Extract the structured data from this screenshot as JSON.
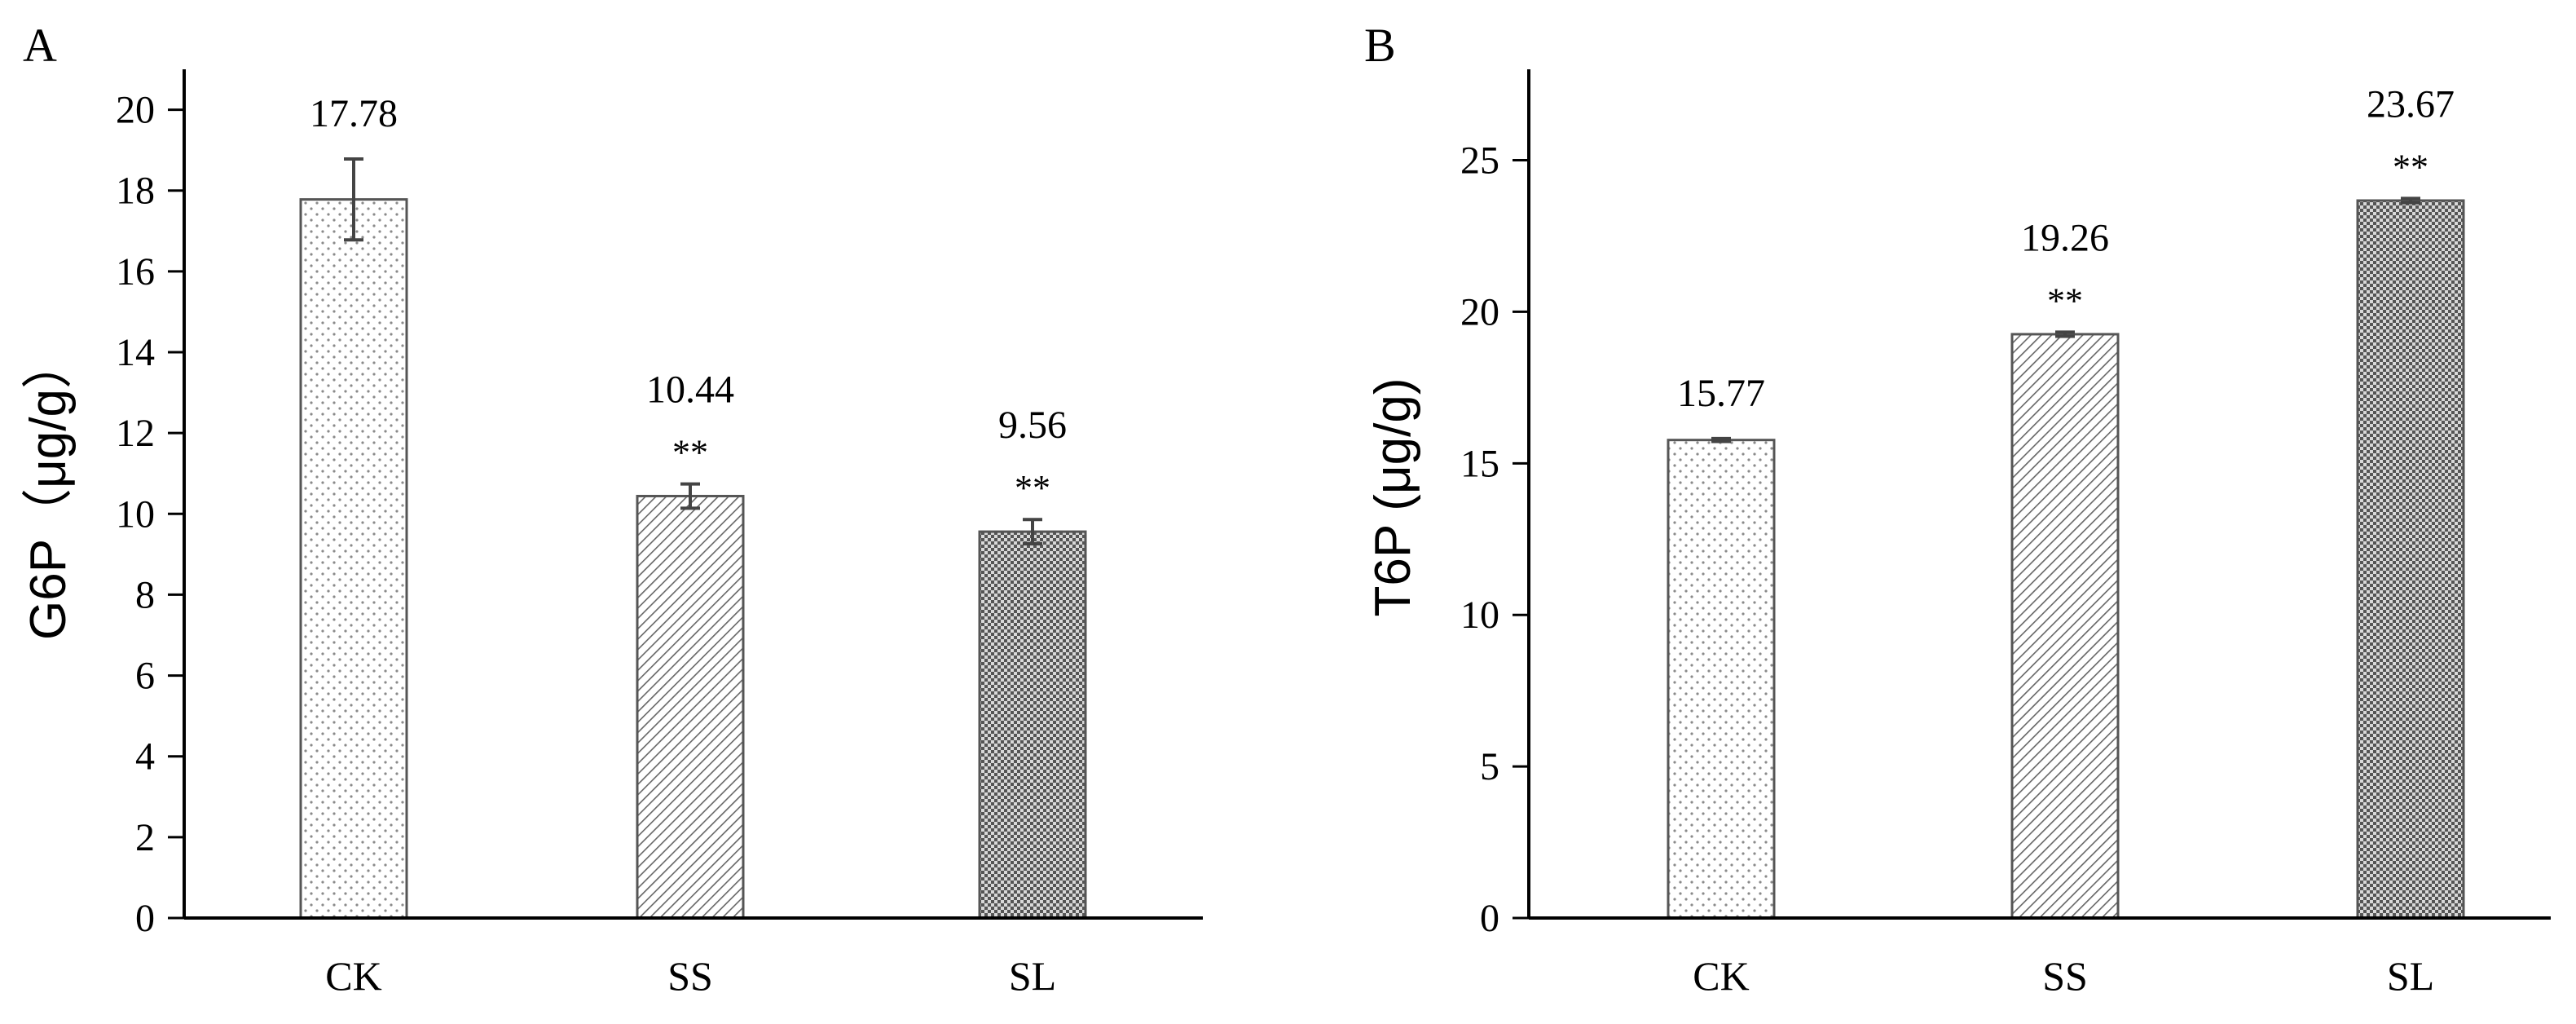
{
  "chart_data": [
    {
      "type": "bar",
      "panel": "A",
      "categories": [
        "CK",
        "SS",
        "SL"
      ],
      "values": [
        17.78,
        10.44,
        9.56
      ],
      "value_labels": [
        "17.78",
        "10.44",
        "9.56"
      ],
      "errors": [
        1.0,
        0.3,
        0.3
      ],
      "significance": [
        "",
        "**",
        "**"
      ],
      "patterns": [
        "dots",
        "hatch",
        "cross"
      ],
      "ylabel": "G6P（μg/g）",
      "xlabel": "",
      "ylim": [
        0,
        21
      ],
      "yticks": [
        0,
        2,
        4,
        6,
        8,
        10,
        12,
        14,
        16,
        18,
        20
      ]
    },
    {
      "type": "bar",
      "panel": "B",
      "categories": [
        "CK",
        "SS",
        "SL"
      ],
      "values": [
        15.77,
        19.26,
        23.67
      ],
      "value_labels": [
        "15.77",
        "19.26",
        "23.67"
      ],
      "errors": [
        0.05,
        0.07,
        0.07
      ],
      "significance": [
        "",
        "**",
        "**"
      ],
      "patterns": [
        "dots",
        "hatch",
        "cross"
      ],
      "ylabel": "T6P (μg/g)",
      "xlabel": "",
      "ylim": [
        0,
        28
      ],
      "yticks": [
        0,
        5,
        10,
        15,
        20,
        25
      ]
    }
  ]
}
